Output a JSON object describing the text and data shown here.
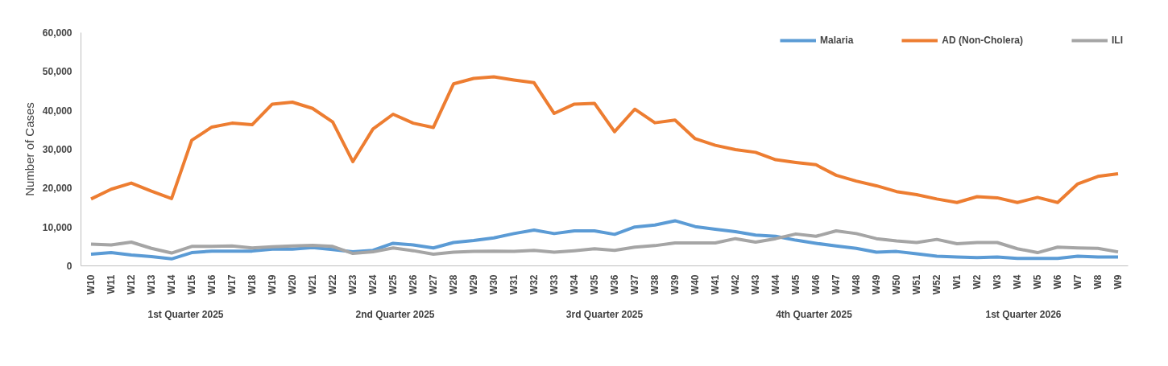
{
  "chart_data": {
    "type": "line",
    "ylabel": "Number of Cases",
    "categories": [
      "W10",
      "W11",
      "W12",
      "W13",
      "W14",
      "W15",
      "W16",
      "W17",
      "W18",
      "W19",
      "W20",
      "W21",
      "W22",
      "W23",
      "W24",
      "W25",
      "W26",
      "W27",
      "W28",
      "W29",
      "W30",
      "W31",
      "W32",
      "W33",
      "W34",
      "W35",
      "W36",
      "W37",
      "W38",
      "W39",
      "W40",
      "W41",
      "W42",
      "W43",
      "W44",
      "W45",
      "W46",
      "W47",
      "W48",
      "W49",
      "W50",
      "W51",
      "W52",
      "W1",
      "W2",
      "W3",
      "W4",
      "W5",
      "W6",
      "W7",
      "W8",
      "W9"
    ],
    "series": [
      {
        "name": "Malaria",
        "color": "#5b9bd5",
        "values": [
          3000,
          3400,
          2800,
          2400,
          1800,
          3400,
          3800,
          3800,
          3800,
          4300,
          4300,
          4700,
          4200,
          3600,
          4000,
          5800,
          5400,
          4600,
          6000,
          6500,
          7200,
          8300,
          9200,
          8300,
          9000,
          9000,
          8100,
          10000,
          10500,
          11600,
          10100,
          9400,
          8800,
          7900,
          7600,
          6600,
          5800,
          5100,
          4500,
          3500,
          3700,
          3100,
          2500,
          2300,
          2100,
          2300,
          1900,
          1900,
          1900,
          2500,
          2300,
          2300
        ]
      },
      {
        "name": "AD (Non-Cholera)",
        "color": "#ed7d31",
        "values": [
          17200,
          19700,
          21300,
          19200,
          17300,
          32300,
          35700,
          36700,
          36300,
          41600,
          42100,
          40500,
          37000,
          26800,
          35200,
          39000,
          36700,
          35600,
          46800,
          48200,
          48600,
          47800,
          47100,
          39200,
          41600,
          41800,
          34500,
          40300,
          36800,
          37500,
          32700,
          31000,
          29900,
          29200,
          27300,
          26600,
          26000,
          23300,
          21800,
          20600,
          19100,
          18300,
          17200,
          16300,
          17800,
          17500,
          16300,
          17600,
          16300,
          21100,
          23000,
          23700
        ]
      },
      {
        "name": "ILI",
        "color": "#a5a5a5",
        "values": [
          5600,
          5400,
          6100,
          4500,
          3300,
          5000,
          5000,
          5100,
          4600,
          4900,
          5100,
          5300,
          5000,
          3200,
          3600,
          4600,
          3900,
          3000,
          3500,
          3700,
          3800,
          3700,
          4000,
          3500,
          3900,
          4400,
          4000,
          4800,
          5200,
          5900,
          5900,
          5900,
          7000,
          6100,
          7000,
          8200,
          7600,
          9000,
          8300,
          7000,
          6400,
          6000,
          6800,
          5700,
          6000,
          6000,
          4400,
          3400,
          4800,
          4600,
          4500,
          3600
        ]
      }
    ],
    "ylim": [
      0,
      60000
    ],
    "yticks": [
      {
        "value": 0,
        "label": "0"
      },
      {
        "value": 10000,
        "label": "10,000"
      },
      {
        "value": 20000,
        "label": "20,000"
      },
      {
        "value": 30000,
        "label": "30,000"
      },
      {
        "value": 40000,
        "label": "40,000"
      },
      {
        "value": 50000,
        "label": "50,000"
      },
      {
        "value": 60000,
        "label": "60,000"
      }
    ],
    "annotations": [
      "1st Quarter 2025",
      "2nd Quarter 2025",
      "3rd Quarter 2025",
      "4th Quarter 2025",
      "1st Quarter 2026"
    ],
    "grid": false,
    "legend": "top right",
    "marker": "none",
    "line_style": "solid"
  }
}
